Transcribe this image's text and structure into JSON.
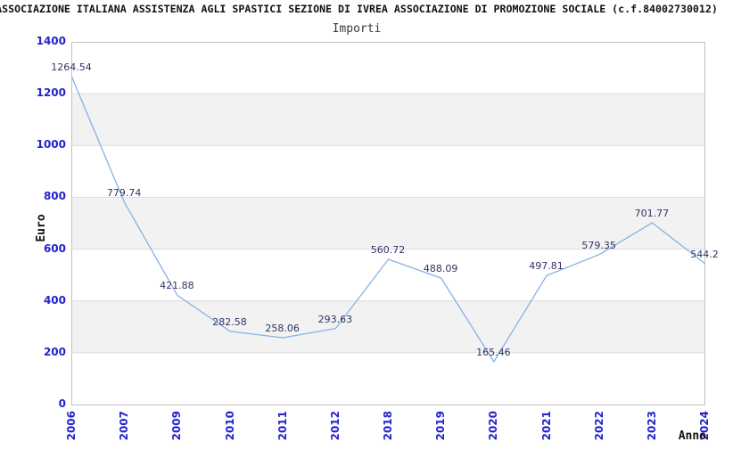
{
  "header": {
    "title": "ASSOCIAZIONE ITALIANA ASSISTENZA AGLI SPASTICI SEZIONE DI IVREA ASSOCIAZIONE DI PROMOZIONE SOCIALE (c.f.84002730012)"
  },
  "chart_data": {
    "type": "line",
    "title": "Importi",
    "xlabel": "Anno",
    "ylabel": "Euro",
    "x": [
      "2006",
      "2007",
      "2009",
      "2010",
      "2011",
      "2012",
      "2018",
      "2019",
      "2020",
      "2021",
      "2022",
      "2023",
      "2024"
    ],
    "values": [
      1264.54,
      779.74,
      421.88,
      282.58,
      258.06,
      293.63,
      560.72,
      488.09,
      165.46,
      497.81,
      579.35,
      701.77,
      544.2
    ],
    "point_labels": [
      "1264.54",
      "779.74",
      "421.88",
      "282.58",
      "258.06",
      "293.63",
      "560.72",
      "488.09",
      "165.46",
      "497.81",
      "579.35",
      "701.77",
      "544.2"
    ],
    "ylim": [
      0,
      1400
    ],
    "yticks": [
      0,
      200,
      400,
      600,
      800,
      1000,
      1200,
      1400
    ],
    "grid": true,
    "legend_position": "none",
    "colors": {
      "line": "#85b2e5",
      "band": "#f2f2f2",
      "grid": "#dcdcdc",
      "border": "#c0c0c0",
      "tick_label": "#2323cd",
      "point_label": "#333366"
    }
  }
}
